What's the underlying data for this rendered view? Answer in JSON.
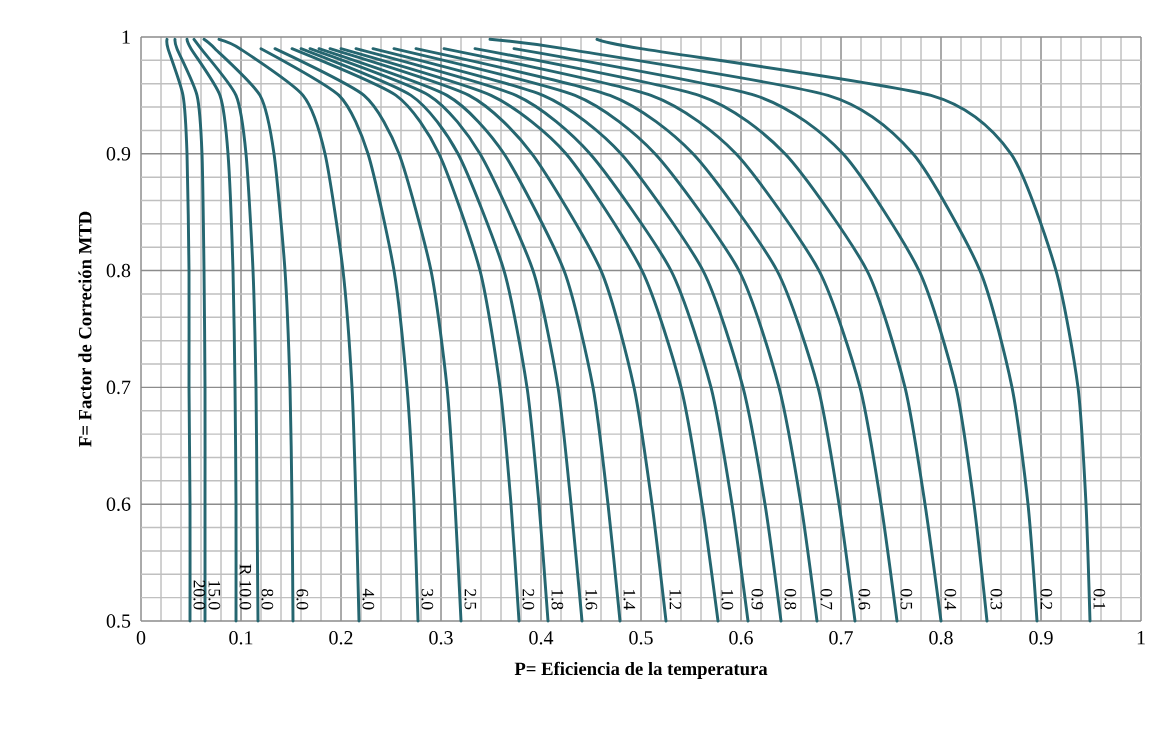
{
  "chart_data": {
    "type": "line",
    "xlabel": "P= Eficiencia de la temperatura",
    "ylabel": "F= Factor de Correción MTD",
    "color": "#256670",
    "grid": true,
    "xlim": [
      0,
      1
    ],
    "xticks": [
      0,
      0.1,
      0.2,
      0.3,
      0.4,
      0.5,
      0.6,
      0.7,
      0.8,
      0.9,
      1
    ],
    "ylim": [
      0.5,
      1
    ],
    "yticks": [
      0.5,
      0.6,
      0.7,
      0.8,
      0.9,
      1
    ],
    "series": [
      {
        "name": "20.0",
        "x": [
          0.026,
          0.027,
          0.042,
          0.046,
          0.048,
          0.048,
          0.049,
          0.049
        ],
        "values": [
          0.998,
          0.99,
          0.95,
          0.9,
          0.8,
          0.7,
          0.6,
          0.5
        ]
      },
      {
        "name": "15.0",
        "x": [
          0.034,
          0.036,
          0.056,
          0.061,
          0.063,
          0.064,
          0.064,
          0.064
        ],
        "values": [
          0.998,
          0.99,
          0.95,
          0.9,
          0.8,
          0.7,
          0.6,
          0.5
        ]
      },
      {
        "name": "R 10.0",
        "x": [
          0.046,
          0.05,
          0.079,
          0.087,
          0.092,
          0.094,
          0.095,
          0.095
        ],
        "values": [
          0.998,
          0.99,
          0.95,
          0.9,
          0.8,
          0.7,
          0.6,
          0.5
        ]
      },
      {
        "name": "8.0",
        "x": [
          0.053,
          0.06,
          0.095,
          0.105,
          0.112,
          0.115,
          0.116,
          0.117
        ],
        "values": [
          0.998,
          0.99,
          0.95,
          0.9,
          0.8,
          0.7,
          0.6,
          0.5
        ]
      },
      {
        "name": "6.0",
        "x": [
          0.063,
          0.074,
          0.119,
          0.133,
          0.144,
          0.149,
          0.151,
          0.152
        ],
        "values": [
          0.998,
          0.99,
          0.95,
          0.9,
          0.8,
          0.7,
          0.6,
          0.5
        ]
      },
      {
        "name": "4.0",
        "x": [
          0.078,
          0.099,
          0.162,
          0.184,
          0.202,
          0.211,
          0.215,
          0.218
        ],
        "values": [
          0.998,
          0.99,
          0.95,
          0.9,
          0.8,
          0.7,
          0.6,
          0.5
        ]
      },
      {
        "name": "3.0",
        "x": [
          0.12,
          0.198,
          0.227,
          0.253,
          0.266,
          0.273,
          0.277
        ],
        "values": [
          0.99,
          0.95,
          0.9,
          0.8,
          0.7,
          0.6,
          0.5
        ]
      },
      {
        "name": "2.5",
        "x": [
          0.134,
          0.223,
          0.258,
          0.29,
          0.306,
          0.314,
          0.32
        ],
        "values": [
          0.99,
          0.95,
          0.9,
          0.8,
          0.7,
          0.6,
          0.5
        ]
      },
      {
        "name": "2.0",
        "x": [
          0.151,
          0.255,
          0.298,
          0.339,
          0.359,
          0.37,
          0.378
        ],
        "values": [
          0.99,
          0.95,
          0.9,
          0.8,
          0.7,
          0.6,
          0.5
        ]
      },
      {
        "name": "1.8",
        "x": [
          0.16,
          0.27,
          0.317,
          0.363,
          0.386,
          0.398,
          0.407
        ],
        "values": [
          0.99,
          0.95,
          0.9,
          0.8,
          0.7,
          0.6,
          0.5
        ]
      },
      {
        "name": "1.6",
        "x": [
          0.169,
          0.288,
          0.339,
          0.392,
          0.417,
          0.43,
          0.441
        ],
        "values": [
          0.99,
          0.95,
          0.9,
          0.8,
          0.7,
          0.6,
          0.5
        ]
      },
      {
        "name": "1.4",
        "x": [
          0.178,
          0.306,
          0.363,
          0.423,
          0.452,
          0.467,
          0.479
        ],
        "values": [
          0.99,
          0.95,
          0.9,
          0.8,
          0.7,
          0.6,
          0.5
        ]
      },
      {
        "name": "1.2",
        "x": [
          0.189,
          0.328,
          0.391,
          0.46,
          0.493,
          0.511,
          0.525
        ],
        "values": [
          0.99,
          0.95,
          0.9,
          0.8,
          0.7,
          0.6,
          0.5
        ]
      },
      {
        "name": "1.0",
        "x": [
          0.2,
          0.35,
          0.425,
          0.501,
          0.54,
          0.561,
          0.577
        ],
        "values": [
          0.99,
          0.95,
          0.9,
          0.8,
          0.7,
          0.6,
          0.5
        ]
      },
      {
        "name": "0.9",
        "x": [
          0.215,
          0.375,
          0.449,
          0.53,
          0.57,
          0.591,
          0.607
        ],
        "values": [
          0.99,
          0.95,
          0.9,
          0.8,
          0.7,
          0.6,
          0.5
        ]
      },
      {
        "name": "0.8",
        "x": [
          0.232,
          0.402,
          0.48,
          0.562,
          0.602,
          0.624,
          0.64
        ],
        "values": [
          0.99,
          0.95,
          0.9,
          0.8,
          0.7,
          0.6,
          0.5
        ]
      },
      {
        "name": "0.7",
        "x": [
          0.253,
          0.434,
          0.514,
          0.598,
          0.638,
          0.66,
          0.676
        ],
        "values": [
          0.99,
          0.95,
          0.9,
          0.8,
          0.7,
          0.6,
          0.5
        ]
      },
      {
        "name": "0.6",
        "x": [
          0.275,
          0.469,
          0.552,
          0.636,
          0.677,
          0.698,
          0.714
        ],
        "values": [
          0.99,
          0.95,
          0.9,
          0.8,
          0.7,
          0.6,
          0.5
        ]
      },
      {
        "name": "0.5",
        "x": [
          0.303,
          0.51,
          0.595,
          0.678,
          0.719,
          0.74,
          0.756
        ],
        "values": [
          0.99,
          0.95,
          0.9,
          0.8,
          0.7,
          0.6,
          0.5
        ]
      },
      {
        "name": "0.4",
        "x": [
          0.334,
          0.558,
          0.644,
          0.726,
          0.764,
          0.784,
          0.8
        ],
        "values": [
          0.99,
          0.95,
          0.9,
          0.8,
          0.7,
          0.6,
          0.5
        ]
      },
      {
        "name": "0.3",
        "x": [
          0.373,
          0.614,
          0.702,
          0.778,
          0.815,
          0.833,
          0.846
        ],
        "values": [
          0.99,
          0.95,
          0.9,
          0.8,
          0.7,
          0.6,
          0.5
        ]
      },
      {
        "name": "0.2",
        "x": [
          0.349,
          0.423,
          0.687,
          0.772,
          0.839,
          0.871,
          0.887,
          0.896
        ],
        "values": [
          0.998,
          0.99,
          0.95,
          0.9,
          0.8,
          0.7,
          0.6,
          0.5
        ]
      },
      {
        "name": "0.1",
        "x": [
          0.456,
          0.5,
          0.79,
          0.87,
          0.915,
          0.937,
          0.945,
          0.949
        ],
        "values": [
          0.998,
          0.99,
          0.95,
          0.9,
          0.8,
          0.7,
          0.6,
          0.5
        ]
      }
    ]
  }
}
